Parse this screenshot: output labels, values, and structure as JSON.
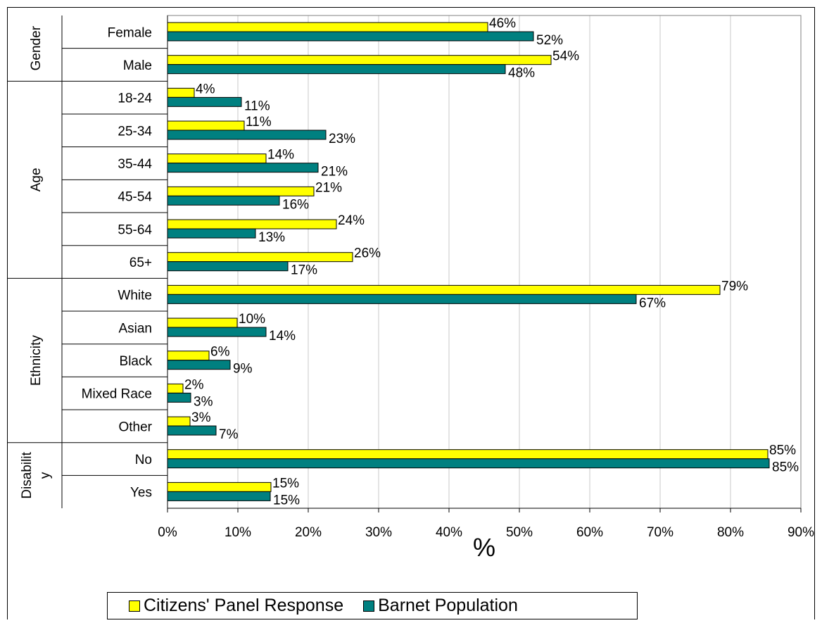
{
  "chart_data": {
    "type": "bar",
    "orientation": "horizontal",
    "groups": [
      {
        "name": "Gender",
        "categories": [
          "Female",
          "Male"
        ]
      },
      {
        "name": "Age",
        "categories": [
          "18-24",
          "25-34",
          "35-44",
          "45-54",
          "55-64",
          "65+"
        ]
      },
      {
        "name": "Ethnicity",
        "categories": [
          "White",
          "Asian",
          "Black",
          "Mixed Race",
          "Other"
        ]
      },
      {
        "name_lines": [
          "Disabilit",
          "y"
        ],
        "categories": [
          "No",
          "Yes"
        ]
      }
    ],
    "categories": [
      "Female",
      "Male",
      "18-24",
      "25-34",
      "35-44",
      "45-54",
      "55-64",
      "65+",
      "White",
      "Asian",
      "Black",
      "Mixed Race",
      "Other",
      "No",
      "Yes"
    ],
    "series": [
      {
        "name": "Citizens' Panel Response",
        "color": "#FFFF00",
        "values": [
          45.5,
          54.5,
          3.8,
          10.9,
          14.0,
          20.8,
          24.0,
          26.3,
          78.5,
          9.9,
          5.9,
          2.2,
          3.2,
          85.3,
          14.7
        ],
        "labels": [
          "46%",
          "54%",
          "4%",
          "11%",
          "14%",
          "21%",
          "24%",
          "26%",
          "79%",
          "10%",
          "6%",
          "2%",
          "3%",
          "85%",
          "15%"
        ]
      },
      {
        "name": "Barnet Population",
        "color": "#008080",
        "values": [
          52.0,
          48.0,
          10.5,
          22.5,
          21.4,
          15.9,
          12.5,
          17.1,
          66.6,
          14.0,
          8.9,
          3.3,
          6.9,
          85.5,
          14.6
        ],
        "labels": [
          "52%",
          "48%",
          "11%",
          "23%",
          "21%",
          "16%",
          "13%",
          "17%",
          "67%",
          "14%",
          "9%",
          "3%",
          "7%",
          "85%",
          "15%"
        ]
      }
    ],
    "xlabel": "%",
    "xlim": [
      0,
      90
    ],
    "xticks": [
      "0%",
      "10%",
      "20%",
      "30%",
      "40%",
      "50%",
      "60%",
      "70%",
      "80%",
      "90%"
    ],
    "grid": true,
    "legend_position": "bottom"
  }
}
